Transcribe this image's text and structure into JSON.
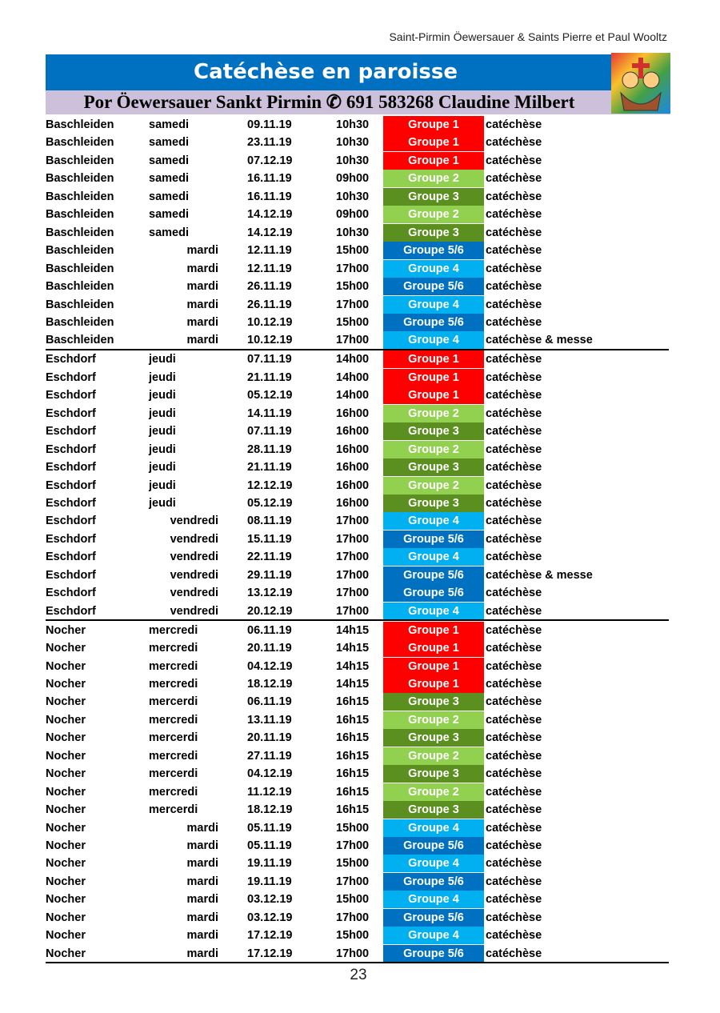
{
  "header": "Saint-Pirmin Öewersauer & Saints Pierre et Paul Wooltz",
  "title": "Catéchèse en paroisse",
  "subtitle": "Por Öewersauer Sankt Pirmin ✆ 691 583268 Claudine Milbert",
  "sections": [
    {
      "rows": [
        {
          "place": "Baschleiden",
          "day": "samedi",
          "date": "09.11.19",
          "time": "10h30",
          "group": "Groupe 1",
          "color": "#ff0000",
          "note": "catéchèse"
        },
        {
          "place": "Baschleiden",
          "day": "samedi",
          "date": "23.11.19",
          "time": "10h30",
          "group": "Groupe 1",
          "color": "#ff0000",
          "note": "catéchèse"
        },
        {
          "place": "Baschleiden",
          "day": "samedi",
          "date": "07.12.19",
          "time": "10h30",
          "group": "Groupe 1",
          "color": "#ff0000",
          "note": "catéchèse"
        },
        {
          "place": "Baschleiden",
          "day": "samedi",
          "date": "16.11.19",
          "time": "09h00",
          "group": "Groupe 2",
          "color": "#92d050",
          "note": "catéchèse"
        },
        {
          "place": "Baschleiden",
          "day": "samedi",
          "date": "16.11.19",
          "time": "10h30",
          "group": "Groupe 3",
          "color": "#5b8f1f",
          "note": "catéchèse"
        },
        {
          "place": "Baschleiden",
          "day": "samedi",
          "date": "14.12.19",
          "time": "09h00",
          "group": "Groupe 2",
          "color": "#92d050",
          "note": "catéchèse"
        },
        {
          "place": "Baschleiden",
          "day": "samedi",
          "date": "14.12.19",
          "time": "10h30",
          "group": "Groupe 3",
          "color": "#5b8f1f",
          "note": "catéchèse"
        },
        {
          "place": "Baschleiden",
          "day": "mardi",
          "date": "12.11.19",
          "time": "15h00",
          "group": "Groupe 5/6",
          "color": "#0070c0",
          "note": "catéchèse"
        },
        {
          "place": "Baschleiden",
          "day": "mardi",
          "date": "12.11.19",
          "time": "17h00",
          "group": "Groupe 4",
          "color": "#00b0f0",
          "note": "catéchèse"
        },
        {
          "place": "Baschleiden",
          "day": "mardi",
          "date": "26.11.19",
          "time": "15h00",
          "group": "Groupe 5/6",
          "color": "#0070c0",
          "note": "catéchèse"
        },
        {
          "place": "Baschleiden",
          "day": "mardi",
          "date": "26.11.19",
          "time": "17h00",
          "group": "Groupe 4",
          "color": "#00b0f0",
          "note": "catéchèse"
        },
        {
          "place": "Baschleiden",
          "day": "mardi",
          "date": "10.12.19",
          "time": "15h00",
          "group": "Groupe 5/6",
          "color": "#0070c0",
          "note": "catéchèse"
        },
        {
          "place": "Baschleiden",
          "day": "mardi",
          "date": "10.12.19",
          "time": "17h00",
          "group": "Groupe 4",
          "color": "#00b0f0",
          "note": "catéchèse & messe"
        }
      ]
    },
    {
      "rows": [
        {
          "place": "Eschdorf",
          "day": "jeudi",
          "date": "07.11.19",
          "time": "14h00",
          "group": "Groupe 1",
          "color": "#ff0000",
          "note": "catéchèse"
        },
        {
          "place": "Eschdorf",
          "day": "jeudi",
          "date": "21.11.19",
          "time": "14h00",
          "group": "Groupe 1",
          "color": "#ff0000",
          "note": "catéchèse"
        },
        {
          "place": "Eschdorf",
          "day": "jeudi",
          "date": "05.12.19",
          "time": "14h00",
          "group": "Groupe 1",
          "color": "#ff0000",
          "note": "catéchèse"
        },
        {
          "place": "Eschdorf",
          "day": "jeudi",
          "date": "14.11.19",
          "time": "16h00",
          "group": "Groupe 2",
          "color": "#92d050",
          "note": "catéchèse"
        },
        {
          "place": "Eschdorf",
          "day": "jeudi",
          "date": "07.11.19",
          "time": "16h00",
          "group": "Groupe 3",
          "color": "#5b8f1f",
          "note": "catéchèse"
        },
        {
          "place": "Eschdorf",
          "day": "jeudi",
          "date": "28.11.19",
          "time": "16h00",
          "group": "Groupe 2",
          "color": "#92d050",
          "note": "catéchèse"
        },
        {
          "place": "Eschdorf",
          "day": "jeudi",
          "date": "21.11.19",
          "time": "16h00",
          "group": "Groupe 3",
          "color": "#5b8f1f",
          "note": "catéchèse"
        },
        {
          "place": "Eschdorf",
          "day": "jeudi",
          "date": "12.12.19",
          "time": "16h00",
          "group": "Groupe 2",
          "color": "#92d050",
          "note": "catéchèse"
        },
        {
          "place": "Eschdorf",
          "day": "jeudi",
          "date": "05.12.19",
          "time": "16h00",
          "group": "Groupe 3",
          "color": "#5b8f1f",
          "note": "catéchèse"
        },
        {
          "place": "Eschdorf",
          "day": "vendredi",
          "date": "08.11.19",
          "time": "17h00",
          "group": "Groupe 4",
          "color": "#00b0f0",
          "note": "catéchèse"
        },
        {
          "place": "Eschdorf",
          "day": "vendredi",
          "date": "15.11.19",
          "time": "17h00",
          "group": "Groupe 5/6",
          "color": "#0070c0",
          "note": "catéchèse"
        },
        {
          "place": "Eschdorf",
          "day": "vendredi",
          "date": "22.11.19",
          "time": "17h00",
          "group": "Groupe 4",
          "color": "#00b0f0",
          "note": "catéchèse"
        },
        {
          "place": "Eschdorf",
          "day": "vendredi",
          "date": "29.11.19",
          "time": "17h00",
          "group": "Groupe 5/6",
          "color": "#0070c0",
          "note": "catéchèse & messe"
        },
        {
          "place": "Eschdorf",
          "day": "vendredi",
          "date": "13.12.19",
          "time": "17h00",
          "group": "Groupe 5/6",
          "color": "#0070c0",
          "note": "catéchèse"
        },
        {
          "place": "Eschdorf",
          "day": "vendredi",
          "date": "20.12.19",
          "time": "17h00",
          "group": "Groupe 4",
          "color": "#00b0f0",
          "note": "catéchèse"
        }
      ]
    },
    {
      "rows": [
        {
          "place": "Nocher",
          "day": "mercredi",
          "date": "06.11.19",
          "time": "14h15",
          "group": "Groupe 1",
          "color": "#ff0000",
          "note": "catéchèse"
        },
        {
          "place": "Nocher",
          "day": "mercredi",
          "date": "20.11.19",
          "time": "14h15",
          "group": "Groupe 1",
          "color": "#ff0000",
          "note": "catéchèse"
        },
        {
          "place": "Nocher",
          "day": "mercredi",
          "date": "04.12.19",
          "time": "14h15",
          "group": "Groupe 1",
          "color": "#ff0000",
          "note": "catéchèse"
        },
        {
          "place": "Nocher",
          "day": "mercredi",
          "date": "18.12.19",
          "time": "14h15",
          "group": "Groupe 1",
          "color": "#ff0000",
          "note": "catéchèse"
        },
        {
          "place": "Nocher",
          "day": "mercerdi",
          "date": "06.11.19",
          "time": "16h15",
          "group": "Groupe 3",
          "color": "#5b8f1f",
          "note": "catéchèse"
        },
        {
          "place": "Nocher",
          "day": "mercredi",
          "date": "13.11.19",
          "time": "16h15",
          "group": "Groupe 2",
          "color": "#92d050",
          "note": "catéchèse"
        },
        {
          "place": "Nocher",
          "day": "mercerdi",
          "date": "20.11.19",
          "time": "16h15",
          "group": "Groupe 3",
          "color": "#5b8f1f",
          "note": "catéchèse"
        },
        {
          "place": "Nocher",
          "day": "mercredi",
          "date": "27.11.19",
          "time": "16h15",
          "group": "Groupe 2",
          "color": "#92d050",
          "note": "catéchèse"
        },
        {
          "place": "Nocher",
          "day": "mercerdi",
          "date": "04.12.19",
          "time": "16h15",
          "group": "Groupe 3",
          "color": "#5b8f1f",
          "note": "catéchèse"
        },
        {
          "place": "Nocher",
          "day": "mercredi",
          "date": "11.12.19",
          "time": "16h15",
          "group": "Groupe 2",
          "color": "#92d050",
          "note": "catéchèse"
        },
        {
          "place": "Nocher",
          "day": "mercerdi",
          "date": "18.12.19",
          "time": "16h15",
          "group": "Groupe 3",
          "color": "#5b8f1f",
          "note": "catéchèse"
        },
        {
          "place": "Nocher",
          "day": "mardi",
          "date": "05.11.19",
          "time": "15h00",
          "group": "Groupe 4",
          "color": "#00b0f0",
          "note": "catéchèse"
        },
        {
          "place": "Nocher",
          "day": "mardi",
          "date": "05.11.19",
          "time": "17h00",
          "group": "Groupe 5/6",
          "color": "#0070c0",
          "note": "catéchèse"
        },
        {
          "place": "Nocher",
          "day": "mardi",
          "date": "19.11.19",
          "time": "15h00",
          "group": "Groupe 4",
          "color": "#00b0f0",
          "note": "catéchèse"
        },
        {
          "place": "Nocher",
          "day": "mardi",
          "date": "19.11.19",
          "time": "17h00",
          "group": "Groupe 5/6",
          "color": "#0070c0",
          "note": "catéchèse"
        },
        {
          "place": "Nocher",
          "day": "mardi",
          "date": "03.12.19",
          "time": "15h00",
          "group": "Groupe 4",
          "color": "#00b0f0",
          "note": "catéchèse"
        },
        {
          "place": "Nocher",
          "day": "mardi",
          "date": "03.12.19",
          "time": "17h00",
          "group": "Groupe 5/6",
          "color": "#0070c0",
          "note": "catéchèse"
        },
        {
          "place": "Nocher",
          "day": "mardi",
          "date": "17.12.19",
          "time": "15h00",
          "group": "Groupe 4",
          "color": "#00b0f0",
          "note": "catéchèse"
        },
        {
          "place": "Nocher",
          "day": "mardi",
          "date": "17.12.19",
          "time": "17h00",
          "group": "Groupe 5/6",
          "color": "#0070c0",
          "note": "catéchèse"
        }
      ]
    }
  ],
  "page_number": "23"
}
